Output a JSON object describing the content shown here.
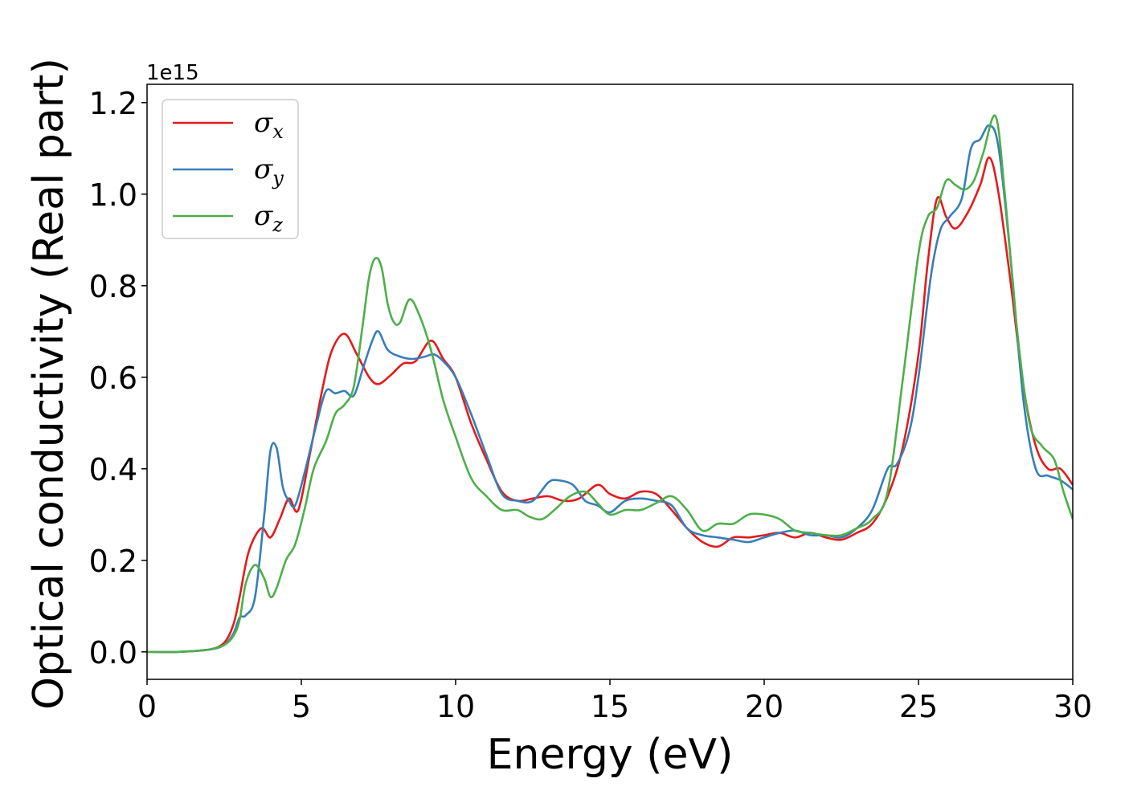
{
  "chart_data": {
    "type": "line",
    "xlabel": "Energy (eV)",
    "ylabel": "Optical conductivity (Real part)",
    "y_offset_label": "1e15",
    "xlim": [
      0,
      30
    ],
    "ylim": [
      -0.06,
      1.24
    ],
    "xticks": [
      0,
      5,
      10,
      15,
      20,
      25,
      30
    ],
    "xtick_labels": [
      "0",
      "5",
      "10",
      "15",
      "20",
      "25",
      "30"
    ],
    "yticks": [
      0.0,
      0.2,
      0.4,
      0.6,
      0.8,
      1.0,
      1.2
    ],
    "ytick_labels": [
      "0.0",
      "0.2",
      "0.4",
      "0.6",
      "0.8",
      "1.0",
      "1.2"
    ],
    "grid": false,
    "legend_position": "top-left",
    "series": [
      {
        "name": "σx",
        "symbol": "σ",
        "subscript": "x",
        "color": "#e41a1c",
        "x": [
          0,
          1,
          2,
          2.5,
          2.8,
          3.0,
          3.3,
          3.7,
          4.0,
          4.3,
          4.6,
          4.9,
          5.3,
          5.7,
          6.0,
          6.4,
          6.8,
          7.2,
          7.5,
          7.9,
          8.3,
          8.7,
          9.2,
          9.6,
          10.0,
          10.5,
          11.0,
          11.5,
          12.0,
          12.5,
          13.0,
          13.5,
          14.0,
          14.6,
          15.0,
          15.5,
          16.0,
          16.5,
          17.0,
          17.5,
          18.0,
          18.5,
          19.0,
          19.5,
          20.0,
          20.5,
          21.0,
          21.5,
          22.0,
          22.5,
          23.0,
          23.5,
          24.0,
          24.5,
          25.0,
          25.3,
          25.6,
          25.9,
          26.2,
          26.6,
          27.0,
          27.3,
          27.6,
          28.0,
          28.4,
          28.8,
          29.2,
          29.6,
          30.0
        ],
        "values": [
          0.0,
          0.0,
          0.005,
          0.02,
          0.06,
          0.12,
          0.22,
          0.27,
          0.25,
          0.29,
          0.335,
          0.31,
          0.44,
          0.58,
          0.66,
          0.695,
          0.65,
          0.6,
          0.585,
          0.605,
          0.63,
          0.635,
          0.68,
          0.64,
          0.6,
          0.5,
          0.42,
          0.35,
          0.33,
          0.335,
          0.34,
          0.33,
          0.335,
          0.365,
          0.345,
          0.335,
          0.35,
          0.345,
          0.31,
          0.27,
          0.24,
          0.23,
          0.25,
          0.25,
          0.255,
          0.26,
          0.25,
          0.26,
          0.25,
          0.245,
          0.26,
          0.28,
          0.34,
          0.45,
          0.65,
          0.85,
          0.99,
          0.95,
          0.925,
          0.96,
          1.02,
          1.08,
          1.0,
          0.8,
          0.58,
          0.45,
          0.4,
          0.4,
          0.365
        ]
      },
      {
        "name": "σy",
        "symbol": "σ",
        "subscript": "y",
        "color": "#377eb8",
        "x": [
          0,
          1,
          2,
          2.5,
          2.8,
          3.0,
          3.2,
          3.5,
          3.8,
          4.0,
          4.2,
          4.4,
          4.6,
          4.8,
          5.1,
          5.5,
          5.8,
          6.1,
          6.4,
          6.7,
          7.0,
          7.3,
          7.5,
          7.8,
          8.2,
          8.6,
          9.0,
          9.3,
          9.6,
          10.0,
          10.5,
          11.0,
          11.5,
          12.0,
          12.5,
          13.0,
          13.3,
          13.8,
          14.2,
          14.6,
          15.0,
          15.5,
          16.0,
          16.5,
          17.0,
          17.5,
          18.0,
          18.5,
          19.0,
          19.5,
          20.0,
          20.5,
          21.0,
          21.5,
          22.0,
          22.5,
          23.0,
          23.5,
          24.0,
          24.3,
          24.7,
          25.0,
          25.4,
          25.7,
          26.0,
          26.4,
          26.7,
          27.0,
          27.3,
          27.6,
          28.0,
          28.4,
          28.8,
          29.2,
          29.6,
          30.0
        ],
        "values": [
          0.0,
          0.0,
          0.005,
          0.015,
          0.04,
          0.075,
          0.08,
          0.12,
          0.3,
          0.44,
          0.445,
          0.36,
          0.33,
          0.32,
          0.39,
          0.5,
          0.57,
          0.565,
          0.57,
          0.56,
          0.62,
          0.68,
          0.7,
          0.66,
          0.645,
          0.64,
          0.645,
          0.65,
          0.635,
          0.6,
          0.52,
          0.43,
          0.345,
          0.33,
          0.33,
          0.37,
          0.375,
          0.365,
          0.33,
          0.32,
          0.305,
          0.33,
          0.335,
          0.33,
          0.32,
          0.27,
          0.255,
          0.25,
          0.245,
          0.24,
          0.25,
          0.26,
          0.265,
          0.255,
          0.255,
          0.25,
          0.27,
          0.31,
          0.4,
          0.41,
          0.48,
          0.6,
          0.82,
          0.92,
          0.95,
          0.99,
          1.1,
          1.12,
          1.15,
          1.1,
          0.85,
          0.55,
          0.4,
          0.385,
          0.375,
          0.355
        ]
      },
      {
        "name": "σz",
        "symbol": "σ",
        "subscript": "z",
        "color": "#4daf4a",
        "x": [
          0,
          1,
          2,
          2.5,
          2.8,
          3.0,
          3.2,
          3.5,
          3.8,
          4.0,
          4.2,
          4.5,
          4.8,
          5.1,
          5.4,
          5.8,
          6.1,
          6.4,
          6.7,
          7.0,
          7.2,
          7.4,
          7.6,
          7.8,
          8.0,
          8.2,
          8.5,
          8.8,
          9.2,
          9.6,
          10.0,
          10.5,
          11.0,
          11.5,
          12.0,
          12.4,
          12.8,
          13.2,
          13.7,
          14.2,
          14.6,
          15.0,
          15.5,
          16.0,
          16.5,
          17.0,
          17.5,
          18.0,
          18.5,
          19.0,
          19.5,
          20.0,
          20.5,
          21.0,
          21.5,
          22.0,
          22.5,
          23.0,
          23.5,
          24.0,
          24.5,
          25.0,
          25.3,
          25.6,
          25.9,
          26.2,
          26.5,
          26.8,
          27.1,
          27.5,
          27.8,
          28.2,
          28.6,
          29.0,
          29.4,
          29.7,
          30.0
        ],
        "values": [
          0.0,
          0.0,
          0.005,
          0.015,
          0.035,
          0.07,
          0.15,
          0.19,
          0.16,
          0.12,
          0.14,
          0.2,
          0.235,
          0.31,
          0.4,
          0.46,
          0.52,
          0.54,
          0.58,
          0.72,
          0.82,
          0.86,
          0.84,
          0.76,
          0.72,
          0.72,
          0.77,
          0.74,
          0.66,
          0.55,
          0.47,
          0.38,
          0.34,
          0.31,
          0.31,
          0.295,
          0.29,
          0.31,
          0.34,
          0.35,
          0.325,
          0.3,
          0.31,
          0.31,
          0.325,
          0.34,
          0.31,
          0.265,
          0.28,
          0.28,
          0.3,
          0.3,
          0.29,
          0.265,
          0.26,
          0.255,
          0.255,
          0.27,
          0.29,
          0.35,
          0.6,
          0.87,
          0.95,
          0.97,
          1.03,
          1.02,
          1.01,
          1.03,
          1.09,
          1.17,
          1.0,
          0.7,
          0.5,
          0.45,
          0.42,
          0.35,
          0.29
        ]
      }
    ]
  }
}
